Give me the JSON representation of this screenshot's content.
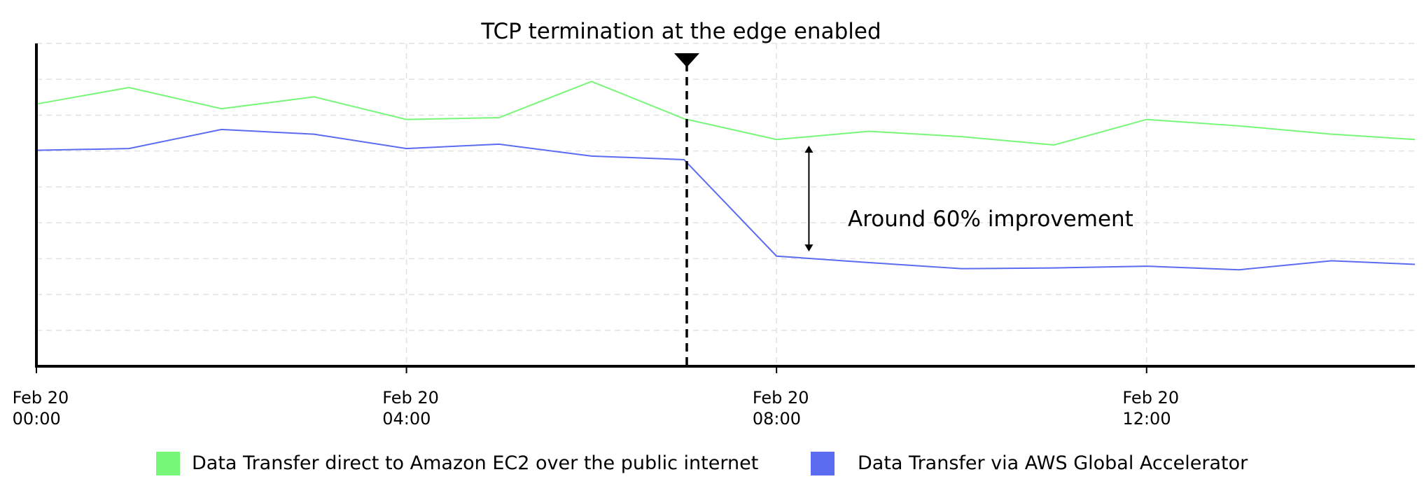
{
  "chart_data": {
    "type": "line",
    "x": [
      0,
      1,
      2,
      3,
      4,
      5,
      6,
      7,
      8,
      9,
      10,
      11,
      12,
      13,
      14,
      14.9
    ],
    "series": [
      {
        "name": "Data Transfer direct to Amazon EC2 over the public internet",
        "color": "#77f777",
        "values": [
          7.31,
          7.77,
          7.18,
          7.51,
          6.88,
          6.93,
          7.94,
          6.9,
          6.32,
          6.55,
          6.4,
          6.17,
          6.88,
          6.7,
          6.47,
          6.32
        ]
      },
      {
        "name": "Data Transfer via AWS Global Accelerator",
        "color": "#5b6cf0",
        "values": [
          6.02,
          6.07,
          6.6,
          6.47,
          6.07,
          6.19,
          5.86,
          5.76,
          3.07,
          2.89,
          2.72,
          2.74,
          2.79,
          2.69,
          2.94,
          2.84
        ]
      }
    ],
    "xlim": [
      0,
      14.9
    ],
    "xticks": [
      {
        "value": 0,
        "label": "Feb 20\n00:00"
      },
      {
        "value": 4,
        "label": "Feb 20\n04:00"
      },
      {
        "value": 8,
        "label": "Feb 20\n08:00"
      },
      {
        "value": 12,
        "label": "Feb 20\n12:00"
      }
    ],
    "ylim": [
      0,
      9
    ],
    "yticks": [
      1,
      2,
      3,
      4,
      5,
      6,
      7,
      8,
      9
    ],
    "grid": true,
    "annotations": [
      {
        "text": "TCP termination at the edge enabled",
        "x": 7.03
      },
      {
        "text": "Around 60% improvement",
        "x": 8.35,
        "y_from": 6.15,
        "y_to": 3.2
      }
    ]
  }
}
